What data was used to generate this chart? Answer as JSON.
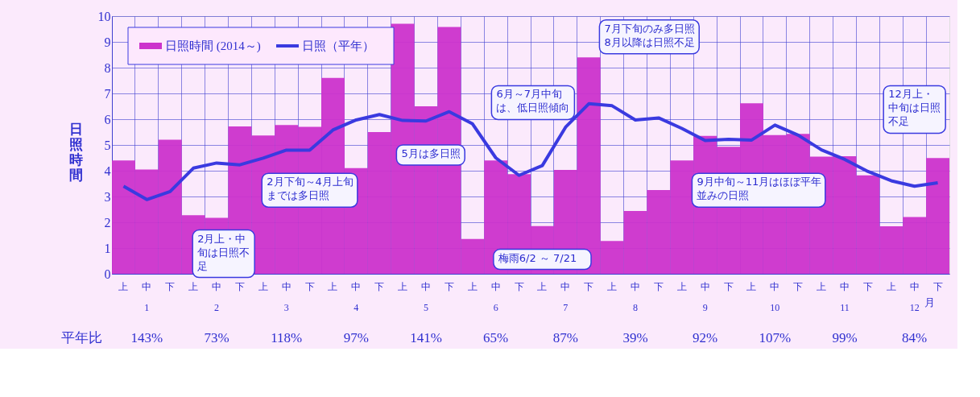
{
  "chart_data": {
    "type": "bar",
    "ylabel": "日照時間",
    "categories": [
      "上",
      "中",
      "下",
      "上",
      "中",
      "下",
      "上",
      "中",
      "下",
      "上",
      "中",
      "下",
      "上",
      "中",
      "下",
      "上",
      "中",
      "下",
      "上",
      "中",
      "下",
      "上",
      "中",
      "下",
      "上",
      "中",
      "下",
      "上",
      "中",
      "下",
      "上",
      "中",
      "下",
      "上",
      "中",
      "下"
    ],
    "series": [
      {
        "name": "日照時間 (2014～)",
        "color": "#cc33cc",
        "values": [
          4.4,
          4.05,
          5.2,
          2.27,
          2.17,
          5.72,
          5.37,
          5.77,
          5.7,
          7.6,
          4.1,
          5.5,
          9.7,
          6.5,
          9.58,
          1.35,
          4.4,
          3.87,
          1.85,
          4.03,
          8.4,
          1.27,
          2.44,
          3.25,
          4.4,
          5.35,
          4.93,
          6.62,
          5.38,
          5.43,
          4.55,
          4.56,
          3.82,
          1.84,
          2.2,
          4.49
        ]
      },
      {
        "name": "日照（平年）",
        "type": "line",
        "color": "#3a3ae0",
        "values": [
          3.4,
          2.88,
          3.19,
          4.1,
          4.3,
          4.23,
          4.49,
          4.8,
          4.8,
          5.58,
          5.97,
          6.18,
          5.95,
          5.93,
          6.29,
          5.82,
          4.5,
          3.82,
          4.2,
          5.69,
          6.6,
          6.52,
          5.97,
          6.05,
          5.64,
          5.17,
          5.22,
          5.19,
          5.77,
          5.38,
          4.81,
          4.44,
          3.97,
          3.61,
          3.4,
          3.53
        ]
      }
    ],
    "ylim": [
      0,
      10
    ],
    "yticks": [
      0,
      1,
      2,
      3,
      4,
      5,
      6,
      7,
      8,
      9,
      10
    ],
    "grid": true,
    "legend": "top left",
    "annotations": [
      "1",
      "2",
      "3",
      "4",
      "5",
      "6",
      "7",
      "8",
      "9",
      "10",
      "11",
      "12",
      "月",
      "平年比",
      "143%",
      "73%",
      "118%",
      "97%",
      "141%",
      "65%",
      "87%",
      "39%",
      "92%",
      "107%",
      "99%",
      "84%",
      "5月は多日照",
      "6月～7月中旬は、低日照傾向",
      "7月下旬のみ多日照",
      "8月以降は日照不足",
      "12月上・中旬は日照不足",
      "2月下旬～4月上旬までは多日照",
      "2月上・中旬は日照不足",
      "梅雨6/2 ～ 7/21",
      "9月中旬～11月はほぼ平年並みの日照"
    ]
  }
}
